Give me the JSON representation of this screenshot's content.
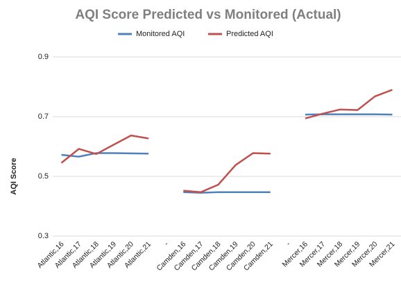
{
  "chart_data": {
    "type": "line",
    "title": "AQI Score Predicted vs Monitored (Actual)",
    "y_label": "AQI Score",
    "categories": [
      "Atlantic,16",
      "Atlantic,17",
      "Atlantic,18",
      "Atlantic,19",
      "Atlantic,20",
      "Atlantic,21",
      "-",
      "Camden,16",
      "Camden,17",
      "Camden,18",
      "Camden,19",
      "Camden,20",
      "Camden,21",
      "-",
      "Mercer,16",
      "Mercer,17",
      "Mercer,18",
      "Mercer,19",
      "Mercer,20",
      "Mercer,21"
    ],
    "series": [
      {
        "name": "Monitored AQI",
        "color": "#4f81bd",
        "values": [
          0.572,
          0.566,
          0.578,
          0.578,
          0.577,
          0.576,
          null,
          0.447,
          0.445,
          0.447,
          0.447,
          0.447,
          0.447,
          null,
          0.707,
          0.708,
          0.708,
          0.708,
          0.708,
          0.707
        ]
      },
      {
        "name": "Predicted AQI",
        "color": "#c0504d",
        "values": [
          0.545,
          0.592,
          0.575,
          0.606,
          0.637,
          0.627,
          null,
          0.452,
          0.447,
          0.472,
          0.538,
          0.578,
          0.576,
          null,
          0.694,
          0.71,
          0.724,
          0.722,
          0.768,
          0.79
        ]
      }
    ],
    "ylim": [
      0.3,
      0.9
    ],
    "yticks": [
      0.3,
      0.5,
      0.7,
      0.9
    ],
    "grid": true,
    "legend": "top"
  }
}
